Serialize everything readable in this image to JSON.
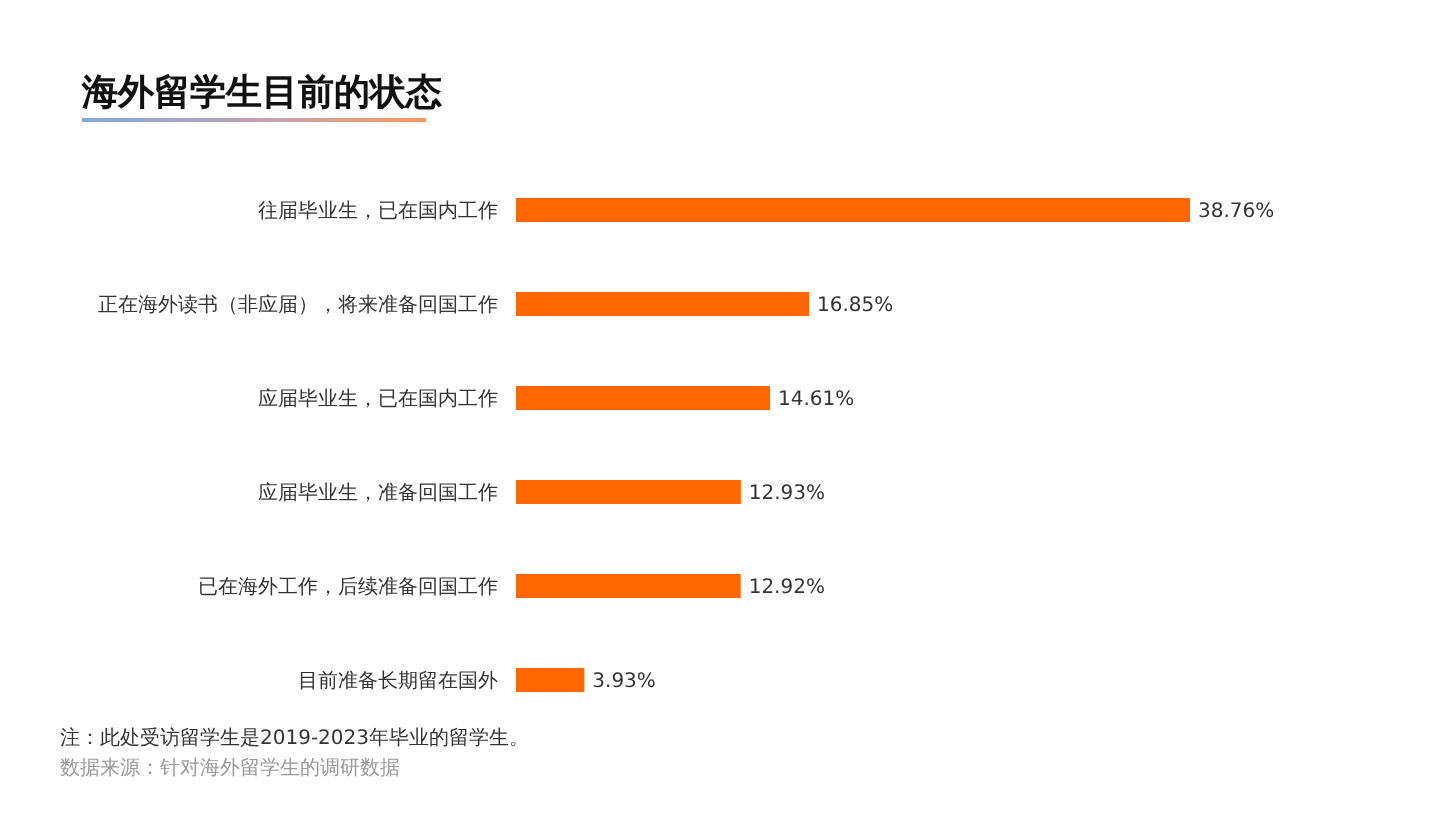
{
  "chart_data": {
    "type": "bar",
    "orientation": "horizontal",
    "title": "海外留学生目前的状态",
    "categories": [
      "往届毕业生，已在国内工作",
      "正在海外读书（非应届），将来准备回国工作",
      "应届毕业生，已在国内工作",
      "应届毕业生，准备回国工作",
      "已在海外工作，后续准备回国工作",
      "目前准备长期留在国外"
    ],
    "values": [
      38.76,
      16.85,
      14.61,
      12.93,
      12.92,
      3.93
    ],
    "value_labels": [
      "38.76%",
      "16.85%",
      "14.61%",
      "12.93%",
      "12.92%",
      "3.93%"
    ],
    "color": "#ff6600",
    "annotations": [
      "注：此处受访留学生是2019-2023年毕业的留学生。",
      "数据来源：针对海外留学生的调研数据"
    ]
  }
}
